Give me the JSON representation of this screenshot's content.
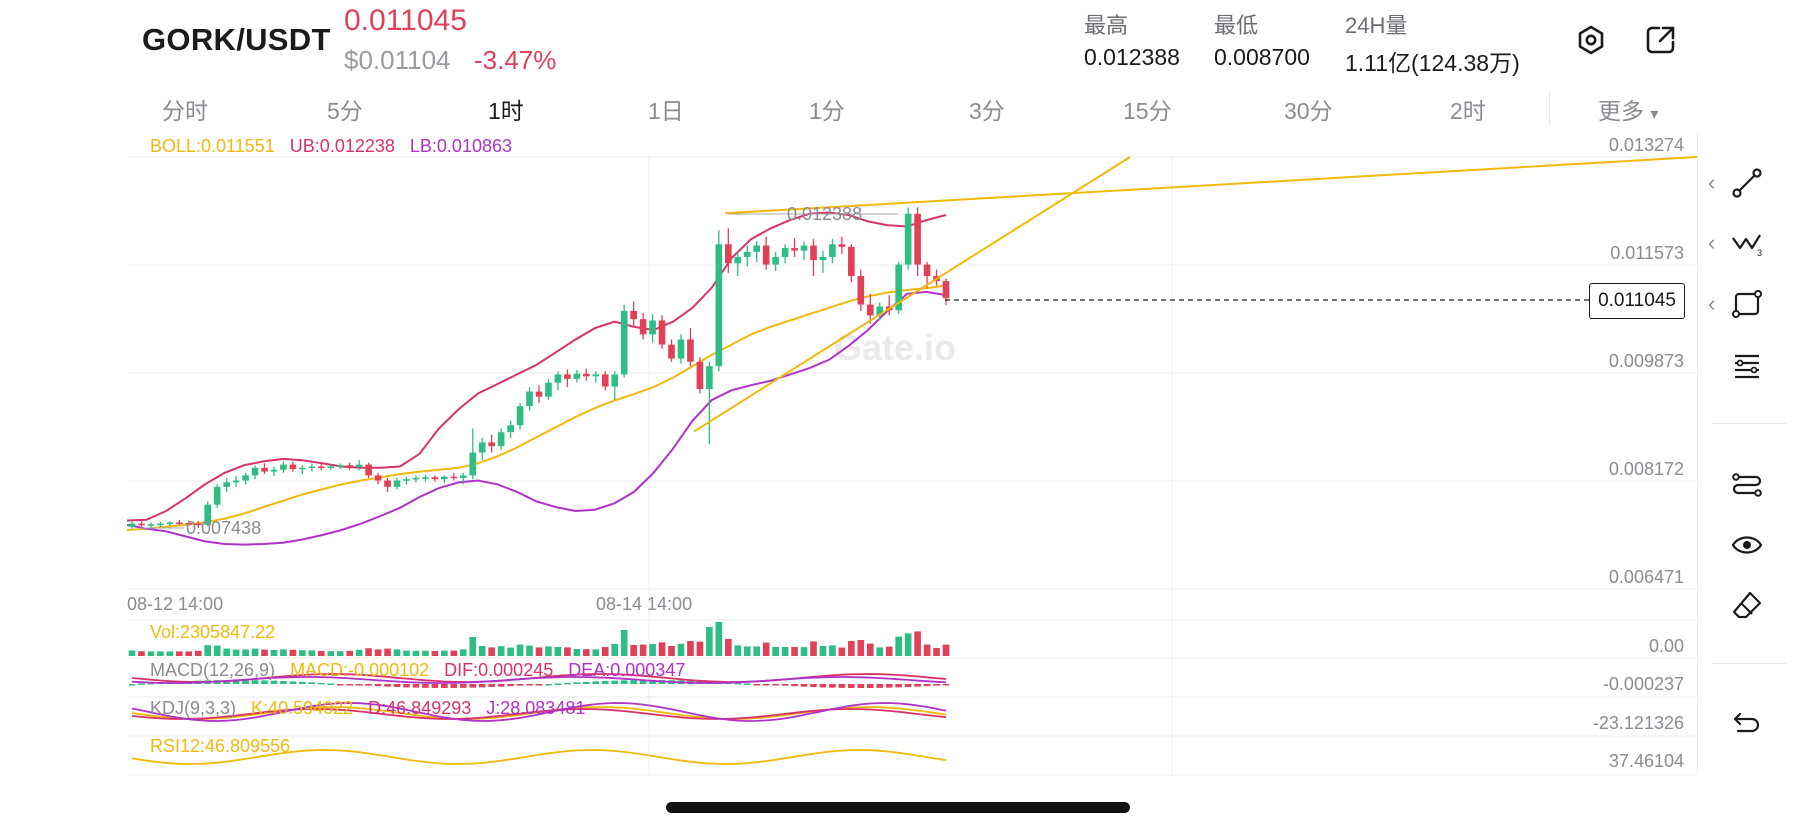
{
  "header": {
    "pair": "GORK/USDT",
    "price": "0.011045",
    "price_usd": "$0.01104",
    "change": "-3.47%",
    "stats": [
      {
        "label": "最高",
        "value": "0.012388"
      },
      {
        "label": "最低",
        "value": "0.008700"
      },
      {
        "label": "24H量",
        "value": "1.11亿(124.38万)"
      }
    ],
    "icons": [
      "settings-hexagon-icon",
      "share-export-icon"
    ]
  },
  "timeframes": {
    "active": "1时",
    "items": [
      "分时",
      "5分",
      "1时",
      "1日",
      "1分",
      "3分",
      "15分",
      "30分",
      "2时"
    ],
    "more": "更多",
    "more_arrow": "▾"
  },
  "indicators": {
    "boll": {
      "boll": "BOLL:0.011551",
      "ub": "UB:0.012238",
      "lb": "LB:0.010863"
    },
    "vol": "Vol:2305847.22",
    "macd": {
      "name": "MACD(12,26,9)",
      "macd": "MACD:-0.000102",
      "dif": "DIF:0.000245",
      "dea": "DEA:0.000347"
    },
    "kdj": {
      "name": "KDJ(9,3,3)",
      "k": "K:40.594022",
      "d": "D:46.849293",
      "j": "J:28.083481"
    },
    "rsi": "RSI12:46.809556"
  },
  "price_axis": [
    "0.013274",
    "0.011573",
    "0.009873",
    "0.008172",
    "0.006471"
  ],
  "sub_axis": {
    "vol": "0.00",
    "macd": "-0.000237",
    "kdj": "-23.121326",
    "rsi": "37.46104"
  },
  "time_axis": [
    "08-12 14:00",
    "08-14 14:00"
  ],
  "annotations": {
    "high": "0.012388",
    "low": "0.007438"
  },
  "current_price_tag": "0.011045",
  "watermark": "Gate.io",
  "toolbar": {
    "chevron": "‹",
    "tools": [
      "trend-line-icon",
      "pattern-icon",
      "shape-icon",
      "fib-lines-icon",
      "indicator-toggle-icon",
      "visibility-eye-icon",
      "eraser-icon",
      "undo-icon"
    ]
  },
  "colors": {
    "up": "#2ebd85",
    "down": "#e04158",
    "boll_mid": "#f0b90b",
    "boll_ub": "#d8326a",
    "boll_lb": "#b032c8",
    "accent_yellow": "#f0b90b"
  },
  "chart_data": {
    "type": "candlestick",
    "interval": "1时",
    "ylim": [
      0.006471,
      0.013274
    ],
    "y_ticks": [
      0.013274,
      0.011573,
      0.009873,
      0.008172,
      0.006471
    ],
    "x_ticks": [
      "08-12 14:00",
      "08-14 14:00"
    ],
    "high_marker": 0.012388,
    "low_marker": 0.007438,
    "last_price": 0.011045,
    "candles": [
      [
        0.00745,
        0.00755,
        0.00742,
        0.0075
      ],
      [
        0.0075,
        0.00754,
        0.00745,
        0.00748
      ],
      [
        0.00748,
        0.00752,
        0.00744,
        0.00749
      ],
      [
        0.00749,
        0.00753,
        0.00745,
        0.0075
      ],
      [
        0.0075,
        0.00754,
        0.00746,
        0.00752
      ],
      [
        0.00752,
        0.00756,
        0.00748,
        0.00751
      ],
      [
        0.00751,
        0.00755,
        0.00747,
        0.0075
      ],
      [
        0.0075,
        0.00754,
        0.00743,
        0.00748
      ],
      [
        0.00748,
        0.00785,
        0.00746,
        0.0078
      ],
      [
        0.0078,
        0.00812,
        0.00775,
        0.00808
      ],
      [
        0.00808,
        0.00822,
        0.008,
        0.00815
      ],
      [
        0.00815,
        0.00825,
        0.00808,
        0.00818
      ],
      [
        0.00818,
        0.0083,
        0.00812,
        0.00826
      ],
      [
        0.00826,
        0.00842,
        0.0082,
        0.00838
      ],
      [
        0.00838,
        0.00845,
        0.00828,
        0.00832
      ],
      [
        0.00832,
        0.0084,
        0.00825,
        0.00835
      ],
      [
        0.00835,
        0.00848,
        0.0083,
        0.00843
      ],
      [
        0.00843,
        0.00848,
        0.00832,
        0.00836
      ],
      [
        0.00836,
        0.00842,
        0.00828,
        0.00838
      ],
      [
        0.00838,
        0.00845,
        0.00832,
        0.0084
      ],
      [
        0.0084,
        0.00844,
        0.00834,
        0.00838
      ],
      [
        0.00838,
        0.00843,
        0.00834,
        0.0084
      ],
      [
        0.0084,
        0.00845,
        0.00836,
        0.00842
      ],
      [
        0.00842,
        0.00846,
        0.00835,
        0.00839
      ],
      [
        0.00839,
        0.0085,
        0.00834,
        0.00843
      ],
      [
        0.00843,
        0.00846,
        0.00822,
        0.00826
      ],
      [
        0.00826,
        0.0083,
        0.00812,
        0.00818
      ],
      [
        0.00818,
        0.00822,
        0.008,
        0.00808
      ],
      [
        0.00808,
        0.00822,
        0.00804,
        0.00818
      ],
      [
        0.00818,
        0.00824,
        0.00812,
        0.0082
      ],
      [
        0.0082,
        0.00826,
        0.00815,
        0.00822
      ],
      [
        0.00822,
        0.00827,
        0.00816,
        0.00823
      ],
      [
        0.00823,
        0.00826,
        0.00816,
        0.0082
      ],
      [
        0.0082,
        0.00826,
        0.00814,
        0.00824
      ],
      [
        0.00824,
        0.0083,
        0.00818,
        0.00822
      ],
      [
        0.00822,
        0.0083,
        0.00812,
        0.00826
      ],
      [
        0.00826,
        0.009,
        0.0082,
        0.00862
      ],
      [
        0.00862,
        0.00885,
        0.0085,
        0.00878
      ],
      [
        0.00878,
        0.0089,
        0.00862,
        0.00872
      ],
      [
        0.00872,
        0.009,
        0.00866,
        0.00894
      ],
      [
        0.00894,
        0.00912,
        0.00885,
        0.00905
      ],
      [
        0.00905,
        0.0094,
        0.00898,
        0.00935
      ],
      [
        0.00935,
        0.00965,
        0.00928,
        0.00958
      ],
      [
        0.00958,
        0.00968,
        0.0094,
        0.0095
      ],
      [
        0.0095,
        0.00978,
        0.00945,
        0.00972
      ],
      [
        0.00972,
        0.0099,
        0.0096,
        0.00985
      ],
      [
        0.00985,
        0.00993,
        0.00965,
        0.00978
      ],
      [
        0.00978,
        0.00992,
        0.00972,
        0.00986
      ],
      [
        0.00986,
        0.00994,
        0.00975,
        0.00982
      ],
      [
        0.00982,
        0.0099,
        0.00972,
        0.00985
      ],
      [
        0.00985,
        0.0099,
        0.0096,
        0.00966
      ],
      [
        0.00966,
        0.0099,
        0.00945,
        0.00985
      ],
      [
        0.00985,
        0.01095,
        0.0098,
        0.01085
      ],
      [
        0.01085,
        0.011,
        0.0106,
        0.01072
      ],
      [
        0.01072,
        0.01082,
        0.0104,
        0.01048
      ],
      [
        0.01048,
        0.0108,
        0.01035,
        0.0107
      ],
      [
        0.0107,
        0.01078,
        0.01025,
        0.01032
      ],
      [
        0.01032,
        0.0104,
        0.01005,
        0.0101
      ],
      [
        0.0101,
        0.01048,
        0.01002,
        0.0104
      ],
      [
        0.0104,
        0.01058,
        0.00998,
        0.01005
      ],
      [
        0.01005,
        0.01012,
        0.00955,
        0.00962
      ],
      [
        0.00962,
        0.01005,
        0.00875,
        0.00998
      ],
      [
        0.00998,
        0.01212,
        0.0099,
        0.0119
      ],
      [
        0.0119,
        0.01215,
        0.01145,
        0.0116
      ],
      [
        0.0116,
        0.01178,
        0.0114,
        0.0117
      ],
      [
        0.0117,
        0.01188,
        0.01155,
        0.01178
      ],
      [
        0.01178,
        0.01195,
        0.01162,
        0.01188
      ],
      [
        0.01188,
        0.01202,
        0.0115,
        0.01158
      ],
      [
        0.01158,
        0.01178,
        0.01148,
        0.0117
      ],
      [
        0.0117,
        0.0119,
        0.0116,
        0.01184
      ],
      [
        0.01184,
        0.012,
        0.0117,
        0.0118
      ],
      [
        0.0118,
        0.01194,
        0.01165,
        0.01188
      ],
      [
        0.01188,
        0.01198,
        0.0114,
        0.01165
      ],
      [
        0.01165,
        0.0118,
        0.01145,
        0.0117
      ],
      [
        0.0117,
        0.01198,
        0.0116,
        0.0119
      ],
      [
        0.0119,
        0.01202,
        0.01175,
        0.01186
      ],
      [
        0.01186,
        0.0119,
        0.0113,
        0.0114
      ],
      [
        0.0114,
        0.0115,
        0.01085,
        0.01095
      ],
      [
        0.01095,
        0.01112,
        0.01065,
        0.01078
      ],
      [
        0.01078,
        0.01098,
        0.0107,
        0.01092
      ],
      [
        0.01092,
        0.0111,
        0.01078,
        0.01086
      ],
      [
        0.01086,
        0.01162,
        0.0108,
        0.01158
      ],
      [
        0.01158,
        0.01248,
        0.0115,
        0.01238
      ],
      [
        0.01238,
        0.01248,
        0.0114,
        0.01158
      ],
      [
        0.01158,
        0.01162,
        0.0112,
        0.0114
      ],
      [
        0.0114,
        0.0115,
        0.01125,
        0.01132
      ],
      [
        0.01132,
        0.01136,
        0.01094,
        0.01105
      ]
    ],
    "indicator_lines": [
      {
        "name": "BOLL",
        "points": [
          0.0074,
          0.00742,
          0.00745,
          0.00748,
          0.00752,
          0.00758,
          0.00766,
          0.00776,
          0.00786,
          0.00796,
          0.00804,
          0.00812,
          0.00818,
          0.00823,
          0.00828,
          0.00832,
          0.00835,
          0.00838,
          0.00845,
          0.00856,
          0.0087,
          0.00886,
          0.00902,
          0.00918,
          0.00932,
          0.00944,
          0.00954,
          0.00965,
          0.0098,
          0.00998,
          0.01016,
          0.01032,
          0.01048,
          0.0106,
          0.0107,
          0.0108,
          0.0109,
          0.011,
          0.01108,
          0.01114,
          0.01118,
          0.01121,
          0.01125
        ]
      },
      {
        "name": "UB",
        "points": [
          0.00755,
          0.00756,
          0.0077,
          0.0079,
          0.00812,
          0.0083,
          0.00842,
          0.00848,
          0.00852,
          0.0085,
          0.00845,
          0.0084,
          0.00838,
          0.00838,
          0.0084,
          0.0086,
          0.009,
          0.0093,
          0.00955,
          0.0097,
          0.00985,
          0.01,
          0.0102,
          0.0104,
          0.01058,
          0.01068,
          0.0106,
          0.01055,
          0.01068,
          0.0109,
          0.01122,
          0.01168,
          0.01198,
          0.01215,
          0.01228,
          0.01238,
          0.0124,
          0.01236,
          0.01226,
          0.0122,
          0.01218,
          0.01228,
          0.01236
        ]
      },
      {
        "name": "LB",
        "points": [
          0.00748,
          0.00742,
          0.00738,
          0.0073,
          0.00722,
          0.00718,
          0.00717,
          0.00718,
          0.0072,
          0.00725,
          0.00732,
          0.0074,
          0.0075,
          0.00762,
          0.00775,
          0.00792,
          0.00806,
          0.00815,
          0.00818,
          0.00812,
          0.008,
          0.00785,
          0.00776,
          0.0077,
          0.00772,
          0.00782,
          0.008,
          0.0083,
          0.00868,
          0.00912,
          0.00945,
          0.0096,
          0.00968,
          0.00975,
          0.00985,
          0.00995,
          0.01008,
          0.0103,
          0.01055,
          0.01085,
          0.01112,
          0.01115,
          0.0111
        ]
      }
    ],
    "trend_lines": [
      {
        "from": [
          0.00895,
          "08-14 ~10:00"
        ],
        "to": [
          0.013274,
          "08-16"
        ],
        "color": "#f0b90b"
      },
      {
        "from": [
          0.012388,
          "08-14 ~13:00"
        ],
        "to": [
          0.013274,
          "08-17+"
        ],
        "color": "#f0b90b"
      }
    ]
  }
}
